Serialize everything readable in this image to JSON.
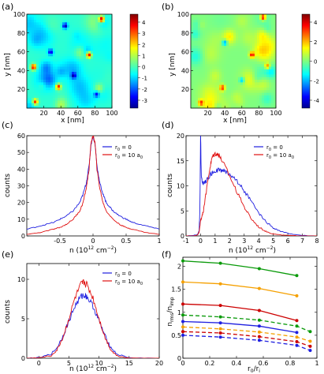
{
  "panels": {
    "a": {
      "label": "(a)",
      "xlabel": "x [nm]",
      "ylabel": "y [nm]",
      "xticks": [
        "20",
        "40",
        "60",
        "80",
        "100"
      ],
      "yticks": [
        "20",
        "40",
        "60",
        "80",
        "100"
      ],
      "colorbar_ticks": [
        "4",
        "3",
        "2",
        "1",
        "0",
        "-1",
        "-2",
        "-3"
      ]
    },
    "b": {
      "label": "(b)",
      "xlabel": "x [nm]",
      "ylabel": "y [nm]",
      "xticks": [
        "20",
        "40",
        "60",
        "80",
        "100"
      ],
      "yticks": [
        "20",
        "40",
        "60",
        "80",
        "100"
      ],
      "colorbar_ticks": [
        "4",
        "2",
        "0",
        "-2",
        "-4"
      ]
    },
    "c": {
      "label": "(c)",
      "xlabel": "n (10^12 cm^-2)",
      "ylabel": "counts",
      "legend": [
        "r0 = 0",
        "r0 = 10 a0"
      ]
    },
    "d": {
      "label": "(d)",
      "xlabel": "n (10^12 cm^-2)",
      "ylabel": "counts",
      "legend": [
        "r0 = 0",
        "r0 = 10 a0"
      ]
    },
    "e": {
      "label": "(e)",
      "xlabel": "n (10^12 cm^-2)",
      "ylabel": "counts",
      "legend": [
        "r0 = 0",
        "r0 = 10 a0"
      ]
    },
    "f": {
      "label": "(f)",
      "xlabel": "r0/ri",
      "ylabel": "n_rms/n_imp"
    }
  },
  "colors": {
    "blue": "#1f1fe0",
    "red": "#e01010",
    "green": "#0a9a0a",
    "orange": "#f5a000",
    "darkred": "#cc0000"
  },
  "chart_data": [
    {
      "panel": "a",
      "type": "heatmap",
      "title": "",
      "xlabel": "x [nm]",
      "ylabel": "y [nm]",
      "xlim": [
        0,
        100
      ],
      "ylim": [
        0,
        100
      ],
      "colorbar_range": [
        -3.5,
        4.8
      ],
      "note_values": "density map; hot spots (red) and cold spots (blue)",
      "spots": [
        {
          "x": 88,
          "y": 95,
          "v": 4.5
        },
        {
          "x": 73,
          "y": 57,
          "v": 4.6
        },
        {
          "x": 8,
          "y": 44,
          "v": 4.2
        },
        {
          "x": 37,
          "y": 23,
          "v": 3.8
        },
        {
          "x": 10,
          "y": 7,
          "v": 3.5
        },
        {
          "x": 45,
          "y": 88,
          "v": -3.2
        },
        {
          "x": 28,
          "y": 60,
          "v": -2.8
        },
        {
          "x": 55,
          "y": 35,
          "v": -2.5
        },
        {
          "x": 82,
          "y": 15,
          "v": -2.3
        }
      ]
    },
    {
      "panel": "b",
      "type": "heatmap",
      "title": "",
      "xlabel": "x [nm]",
      "ylabel": "y [nm]",
      "xlim": [
        0,
        100
      ],
      "ylim": [
        0,
        100
      ],
      "colorbar_range": [
        -4.8,
        4.8
      ],
      "spots": [
        {
          "x": 85,
          "y": 97,
          "v": 4.0
        },
        {
          "x": 72,
          "y": 57,
          "v": 3.5
        },
        {
          "x": 37,
          "y": 22,
          "v": 3.2
        },
        {
          "x": 12,
          "y": 6,
          "v": 3.0
        },
        {
          "x": 90,
          "y": 45,
          "v": 2.5
        },
        {
          "x": 40,
          "y": 70,
          "v": -2.5
        },
        {
          "x": 60,
          "y": 30,
          "v": -2.0
        }
      ]
    },
    {
      "panel": "c",
      "type": "line",
      "title": "",
      "xlabel": "n (10^12 cm^-2)",
      "ylabel": "counts",
      "xlim": [
        -1,
        1
      ],
      "ylim": [
        0,
        60
      ],
      "xticks": [
        -0.5,
        0,
        0.5,
        1
      ],
      "yticks": [
        0,
        10,
        20,
        30,
        40,
        50,
        60
      ],
      "series": [
        {
          "name": "r0 = 0",
          "color": "blue",
          "x": [
            -1,
            -0.8,
            -0.6,
            -0.5,
            -0.4,
            -0.3,
            -0.2,
            -0.15,
            -0.1,
            -0.06,
            -0.03,
            0,
            0.03,
            0.06,
            0.1,
            0.15,
            0.2,
            0.3,
            0.4,
            0.5,
            0.6,
            0.8,
            1
          ],
          "y": [
            4,
            6,
            8,
            10,
            12,
            15,
            20,
            25,
            32,
            42,
            55,
            60,
            55,
            42,
            32,
            25,
            20,
            15,
            12,
            10,
            8,
            6,
            4
          ]
        },
        {
          "name": "r0 = 10 a0",
          "color": "red",
          "x": [
            -1,
            -0.8,
            -0.6,
            -0.5,
            -0.4,
            -0.3,
            -0.2,
            -0.15,
            -0.1,
            -0.06,
            -0.03,
            0,
            0.03,
            0.06,
            0.1,
            0.15,
            0.2,
            0.3,
            0.4,
            0.5,
            0.6,
            0.8,
            1
          ],
          "y": [
            1,
            2,
            4,
            5,
            7,
            10,
            15,
            20,
            29,
            40,
            56,
            60,
            56,
            40,
            29,
            20,
            15,
            10,
            7,
            5,
            4,
            2,
            1
          ]
        }
      ]
    },
    {
      "panel": "d",
      "type": "line",
      "title": "",
      "xlabel": "n (10^12 cm^-2)",
      "ylabel": "counts",
      "xlim": [
        -1,
        8
      ],
      "ylim": [
        0,
        20
      ],
      "xticks": [
        -1,
        0,
        1,
        2,
        3,
        4,
        5,
        6,
        7,
        8
      ],
      "yticks": [
        0,
        5,
        10,
        15,
        20
      ],
      "series": [
        {
          "name": "r0 = 0",
          "color": "blue",
          "x": [
            -1,
            -0.5,
            -0.2,
            -0.1,
            -0.05,
            0,
            0.05,
            0.1,
            0.2,
            0.4,
            0.7,
            1,
            1.3,
            1.6,
            2,
            2.5,
            3,
            3.5,
            4,
            4.5,
            5,
            5.5,
            6,
            7,
            8
          ],
          "y": [
            0,
            0.1,
            0.3,
            1,
            5,
            20,
            12,
            10.8,
            10.5,
            11,
            12.3,
            13,
            13.2,
            13,
            12.4,
            11,
            9,
            6.8,
            4.5,
            2.8,
            1.6,
            0.9,
            0.5,
            0.1,
            0
          ]
        },
        {
          "name": "r0 = 10 a0",
          "color": "red",
          "x": [
            -1,
            -0.5,
            -0.2,
            -0.1,
            0,
            0.1,
            0.2,
            0.4,
            0.6,
            0.8,
            1,
            1.2,
            1.5,
            2,
            2.5,
            3,
            3.5,
            4,
            4.5,
            5,
            5.5,
            6,
            7,
            8
          ],
          "y": [
            0,
            0,
            0.2,
            0.8,
            3,
            4,
            5,
            9,
            13,
            15.8,
            16.5,
            16.3,
            15,
            12,
            8.8,
            5.8,
            3.4,
            1.8,
            0.9,
            0.4,
            0.2,
            0.1,
            0,
            0
          ]
        }
      ]
    },
    {
      "panel": "e",
      "type": "line",
      "title": "",
      "xlabel": "n (10^12 cm^-2)",
      "ylabel": "counts",
      "xlim": [
        -2,
        20
      ],
      "ylim": [
        0,
        12
      ],
      "xticks": [
        0,
        5,
        10,
        15,
        20
      ],
      "yticks": [
        0,
        5,
        10
      ],
      "series": [
        {
          "name": "r0 = 0",
          "color": "blue",
          "x": [
            -2,
            0,
            2,
            3,
            4,
            5,
            6,
            7,
            7.5,
            8,
            9,
            10,
            11,
            12,
            13,
            15,
            20
          ],
          "y": [
            0,
            0.1,
            0.5,
            1.3,
            2.8,
            4.7,
            6.6,
            7.8,
            8.0,
            7.8,
            6.6,
            4.7,
            2.8,
            1.3,
            0.5,
            0.05,
            0
          ]
        },
        {
          "name": "r0 = 10 a0",
          "color": "red",
          "x": [
            -2,
            0,
            2,
            3,
            4,
            5,
            6,
            7,
            7.5,
            8,
            9,
            10,
            11,
            12,
            13,
            15,
            20
          ],
          "y": [
            0,
            0.05,
            0.3,
            1.0,
            2.6,
            5.0,
            7.6,
            9.3,
            9.6,
            9.3,
            7.6,
            5.0,
            2.6,
            1.0,
            0.3,
            0.02,
            0
          ]
        }
      ]
    },
    {
      "panel": "f",
      "type": "line",
      "title": "",
      "xlabel": "r0/ri",
      "ylabel": "n_rms/n_imp",
      "xlim": [
        0,
        1
      ],
      "ylim": [
        0,
        2.2
      ],
      "xticks": [
        0,
        0.2,
        0.4,
        0.6,
        0.8,
        1
      ],
      "yticks": [
        0,
        0.5,
        1,
        1.5,
        2
      ],
      "series": [
        {
          "color": "green",
          "style": "solid",
          "x": [
            0,
            0.28,
            0.57,
            0.85
          ],
          "y": [
            2.12,
            2.07,
            1.95,
            1.8
          ]
        },
        {
          "color": "orange",
          "style": "solid",
          "x": [
            0,
            0.28,
            0.57,
            0.85
          ],
          "y": [
            1.66,
            1.62,
            1.52,
            1.36
          ]
        },
        {
          "color": "darkred",
          "style": "solid",
          "x": [
            0,
            0.28,
            0.57,
            0.85
          ],
          "y": [
            1.18,
            1.15,
            1.04,
            0.82
          ]
        },
        {
          "color": "green",
          "style": "dashed",
          "x": [
            0,
            0.28,
            0.57,
            0.85,
            0.95
          ],
          "y": [
            0.94,
            0.9,
            0.83,
            0.7,
            0.58
          ]
        },
        {
          "color": "blue",
          "style": "solid",
          "x": [
            0,
            0.28,
            0.57,
            0.85
          ],
          "y": [
            0.8,
            0.77,
            0.7,
            0.56
          ]
        },
        {
          "color": "orange",
          "style": "dashed",
          "x": [
            0,
            0.28,
            0.57,
            0.85,
            0.95
          ],
          "y": [
            0.68,
            0.64,
            0.57,
            0.46,
            0.37
          ]
        },
        {
          "color": "darkred",
          "style": "dashed",
          "x": [
            0,
            0.28,
            0.57,
            0.85,
            0.95
          ],
          "y": [
            0.58,
            0.55,
            0.47,
            0.36,
            0.26
          ]
        },
        {
          "color": "blue",
          "style": "dashed",
          "x": [
            0,
            0.28,
            0.57,
            0.85,
            0.95
          ],
          "y": [
            0.5,
            0.46,
            0.39,
            0.28,
            0.17
          ]
        }
      ]
    }
  ]
}
